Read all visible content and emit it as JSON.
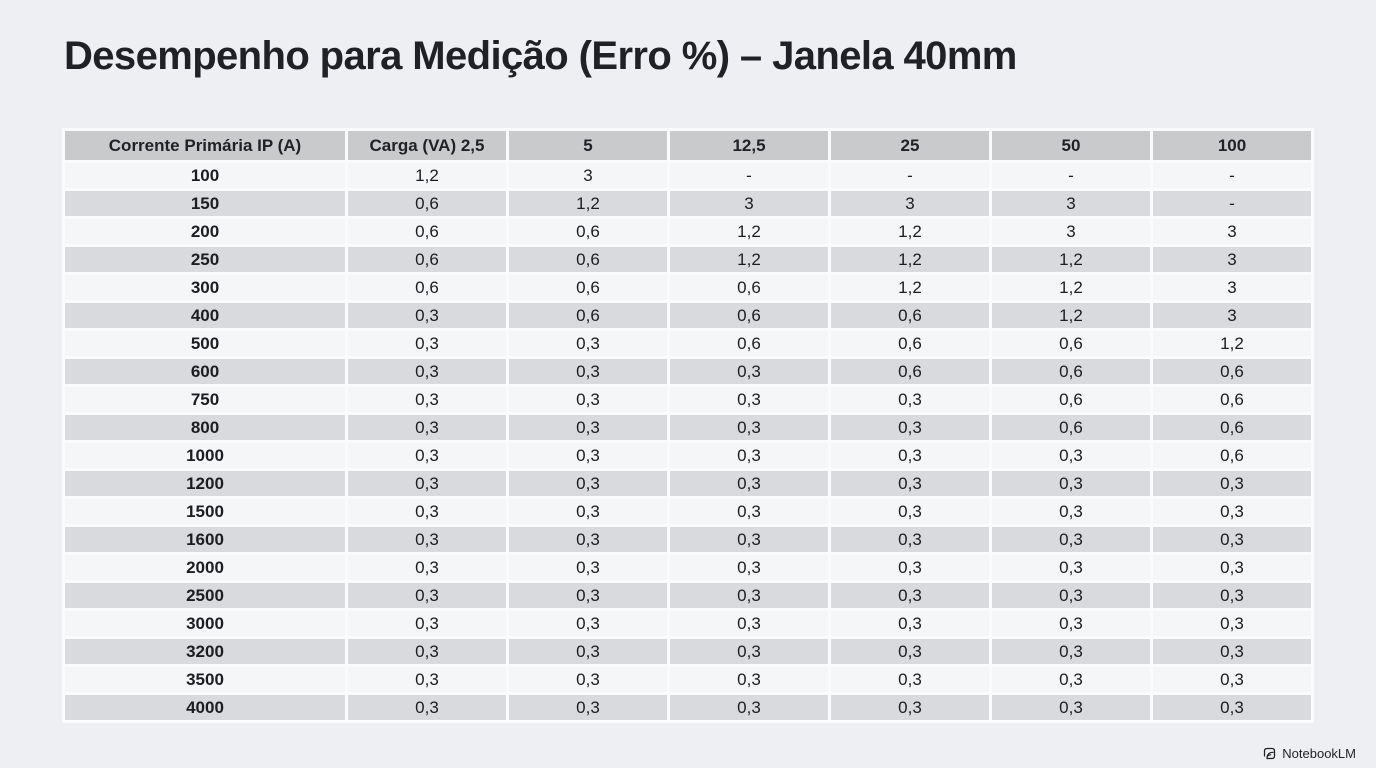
{
  "title": "Desempenho para Medição (Erro %) – Janela 40mm",
  "branding": {
    "label": "NotebookLM",
    "icon": "notebooklm-logo-icon"
  },
  "colors": {
    "background": "#edeff3",
    "header_cell": "#c8cacc",
    "row_light": "#f4f6f8",
    "row_dark": "#d8dadd",
    "cell_gap": "#fafbfc",
    "text": "#1b1d21",
    "title_text": "#1f2126"
  },
  "chart_data": {
    "type": "table",
    "title": "Desempenho para Medição (Erro %) – Janela 40mm",
    "columns": [
      "Corrente Primária IP (A)",
      "Carga (VA) 2,5",
      "5",
      "12,5",
      "25",
      "50",
      "100"
    ],
    "rows": [
      [
        "100",
        "1,2",
        "3",
        "-",
        "-",
        "-",
        "-"
      ],
      [
        "150",
        "0,6",
        "1,2",
        "3",
        "3",
        "3",
        "-"
      ],
      [
        "200",
        "0,6",
        "0,6",
        "1,2",
        "1,2",
        "3",
        "3"
      ],
      [
        "250",
        "0,6",
        "0,6",
        "1,2",
        "1,2",
        "1,2",
        "3"
      ],
      [
        "300",
        "0,6",
        "0,6",
        "0,6",
        "1,2",
        "1,2",
        "3"
      ],
      [
        "400",
        "0,3",
        "0,6",
        "0,6",
        "0,6",
        "1,2",
        "3"
      ],
      [
        "500",
        "0,3",
        "0,3",
        "0,6",
        "0,6",
        "0,6",
        "1,2"
      ],
      [
        "600",
        "0,3",
        "0,3",
        "0,3",
        "0,6",
        "0,6",
        "0,6"
      ],
      [
        "750",
        "0,3",
        "0,3",
        "0,3",
        "0,3",
        "0,6",
        "0,6"
      ],
      [
        "800",
        "0,3",
        "0,3",
        "0,3",
        "0,3",
        "0,6",
        "0,6"
      ],
      [
        "1000",
        "0,3",
        "0,3",
        "0,3",
        "0,3",
        "0,3",
        "0,6"
      ],
      [
        "1200",
        "0,3",
        "0,3",
        "0,3",
        "0,3",
        "0,3",
        "0,3"
      ],
      [
        "1500",
        "0,3",
        "0,3",
        "0,3",
        "0,3",
        "0,3",
        "0,3"
      ],
      [
        "1600",
        "0,3",
        "0,3",
        "0,3",
        "0,3",
        "0,3",
        "0,3"
      ],
      [
        "2000",
        "0,3",
        "0,3",
        "0,3",
        "0,3",
        "0,3",
        "0,3"
      ],
      [
        "2500",
        "0,3",
        "0,3",
        "0,3",
        "0,3",
        "0,3",
        "0,3"
      ],
      [
        "3000",
        "0,3",
        "0,3",
        "0,3",
        "0,3",
        "0,3",
        "0,3"
      ],
      [
        "3200",
        "0,3",
        "0,3",
        "0,3",
        "0,3",
        "0,3",
        "0,3"
      ],
      [
        "3500",
        "0,3",
        "0,3",
        "0,3",
        "0,3",
        "0,3",
        "0,3"
      ],
      [
        "4000",
        "0,3",
        "0,3",
        "0,3",
        "0,3",
        "0,3",
        "0,3"
      ]
    ]
  }
}
